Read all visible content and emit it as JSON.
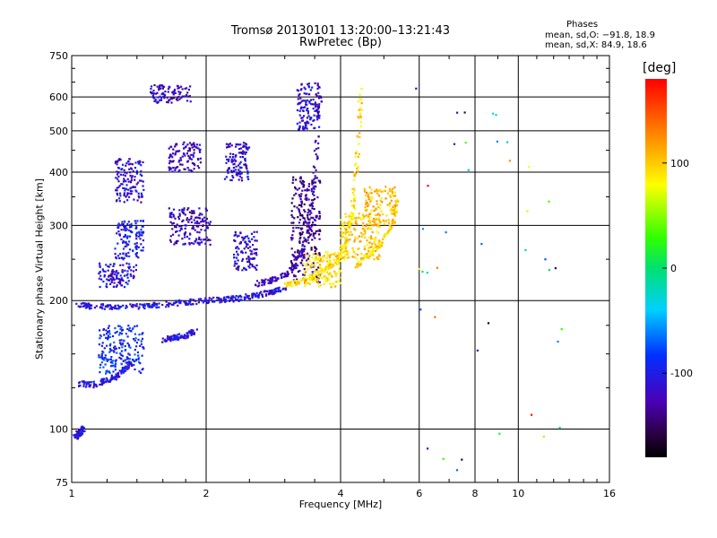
{
  "chart_data": {
    "type": "scatter",
    "title": "Tromsø 20130101 13:20:00–13:21:43",
    "subtitle": "RwPretec (Bp)",
    "xlabel": "Frequency [MHz]",
    "ylabel": "Stationary phase Virtual Height [km]",
    "x_scale": "log",
    "y_scale": "log",
    "xlim": [
      1,
      16
    ],
    "ylim": [
      75,
      750
    ],
    "x_ticks": [
      1,
      2,
      4,
      6,
      8,
      10,
      16
    ],
    "y_ticks": [
      75,
      100,
      200,
      300,
      400,
      500,
      600,
      750
    ],
    "grid": true,
    "phase_info": {
      "heading": "Phases",
      "line_o": "mean, sd,O: −91.8, 18.9",
      "line_x": "mean, sd,X:  84.9, 18.6"
    },
    "colorbar": {
      "label": "[deg]",
      "ticks": [
        100,
        0,
        -100
      ],
      "range": [
        -180,
        180
      ],
      "placement": "right"
    },
    "series": [
      {
        "traces": [
          {
            "x": [
              1.03,
              1.1,
              1.25,
              1.45,
              1.6,
              1.8,
              2.0,
              2.2,
              2.4,
              2.6,
              2.8,
              3.0
            ],
            "y": [
              196,
              194,
              193,
              194,
              196,
              198,
              200,
              201,
              203,
              206,
              209,
              213
            ]
          },
          {
            "x": [
              1.03,
              1.12,
              1.2,
              1.28,
              1.35
            ],
            "y": [
              128,
              127,
              130,
              134,
              142
            ]
          },
          {
            "x": [
              1.02,
              1.04,
              1.06
            ],
            "y": [
              96,
              98,
              100
            ]
          },
          {
            "x": [
              1.6,
              1.7,
              1.8,
              1.9
            ],
            "y": [
              162,
              164,
              166,
              170
            ]
          },
          {
            "x": [
              2.6,
              2.8,
              3.0,
              3.2,
              3.4,
              3.5,
              3.6
            ],
            "y": [
              219,
              223,
              230,
              245,
              290,
              400,
              600
            ]
          },
          {
            "x": [
              3.0,
              3.3,
              3.6,
              3.9,
              4.1,
              4.25,
              4.35,
              4.45
            ],
            "y": [
              218,
              222,
              232,
              248,
              270,
              320,
              420,
              630
            ]
          },
          {
            "x": [
              4.3,
              4.6,
              4.9,
              5.2,
              5.4
            ],
            "y": [
              240,
              255,
              270,
              300,
              350
            ]
          }
        ],
        "blobs": [
          {
            "x": [
              1.25,
              1.45
            ],
            "y": [
              340,
              430
            ],
            "phase": -112
          },
          {
            "x": [
              1.25,
              1.45
            ],
            "y": [
              250,
              310
            ],
            "phase": -100
          },
          {
            "x": [
              1.15,
              1.4
            ],
            "y": [
              215,
              245
            ],
            "phase": -110
          },
          {
            "x": [
              1.65,
              1.95
            ],
            "y": [
              400,
              470
            ],
            "phase": -122
          },
          {
            "x": [
              1.65,
              2.05
            ],
            "y": [
              270,
              330
            ],
            "phase": -118
          },
          {
            "x": [
              1.5,
              1.85
            ],
            "y": [
              580,
              640
            ],
            "phase": -120
          },
          {
            "x": [
              2.2,
              2.5
            ],
            "y": [
              380,
              470
            ],
            "phase": -112
          },
          {
            "x": [
              2.3,
              2.6
            ],
            "y": [
              235,
              290
            ],
            "phase": -112
          },
          {
            "x": [
              3.1,
              3.6
            ],
            "y": [
              220,
              390
            ],
            "phase": -138
          },
          {
            "x": [
              3.2,
              3.6
            ],
            "y": [
              500,
              650
            ],
            "phase": -110
          },
          {
            "x": [
              1.15,
              1.45
            ],
            "y": [
              135,
              175
            ],
            "phase": -88
          },
          {
            "x": [
              3.3,
              4.0
            ],
            "y": [
              215,
              260
            ],
            "phase": 92
          },
          {
            "x": [
              4.0,
              4.9
            ],
            "y": [
              250,
              320
            ],
            "phase": 100
          },
          {
            "x": [
              4.5,
              5.3
            ],
            "y": [
              300,
              370
            ],
            "phase": 105
          }
        ],
        "sparse": {
          "x": [
            5.5,
            12.5
          ],
          "y": [
            80,
            650
          ],
          "phase": [
            -180,
            180
          ]
        }
      }
    ]
  }
}
